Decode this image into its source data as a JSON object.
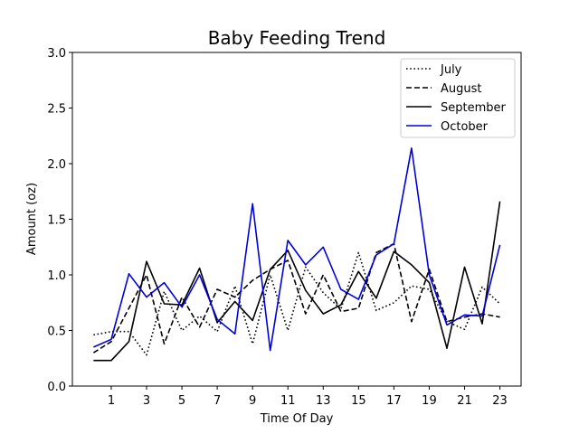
{
  "chart_data": {
    "type": "line",
    "title": "Baby Feeding Trend",
    "xlabel": "Time Of Day",
    "ylabel": "Amount (oz)",
    "xlim": [
      -1.2,
      24.2
    ],
    "ylim": [
      0,
      3.0
    ],
    "xticks": [
      1,
      3,
      5,
      7,
      9,
      11,
      13,
      15,
      17,
      19,
      21,
      23
    ],
    "yticks": [
      0.0,
      0.5,
      1.0,
      1.5,
      2.0,
      2.5,
      3.0
    ],
    "ytick_labels": [
      "0.0",
      "0.5",
      "1.0",
      "1.5",
      "2.0",
      "2.5",
      "3.0"
    ],
    "legend_position": "top-right",
    "x": [
      0,
      1,
      2,
      3,
      4,
      5,
      6,
      7,
      8,
      9,
      10,
      11,
      12,
      13,
      14,
      15,
      16,
      17,
      18,
      19,
      20,
      21,
      22,
      23
    ],
    "series": [
      {
        "name": "July",
        "style": "dotted",
        "color": "#000000",
        "values": [
          0.46,
          0.49,
          0.49,
          0.28,
          0.85,
          0.5,
          0.63,
          0.49,
          0.9,
          0.38,
          1.0,
          0.5,
          1.07,
          0.84,
          0.69,
          1.2,
          0.68,
          0.75,
          0.9,
          0.87,
          0.58,
          0.51,
          0.89,
          0.74
        ]
      },
      {
        "name": "August",
        "style": "dashed",
        "color": "#000000",
        "values": [
          0.3,
          0.4,
          0.7,
          1.0,
          0.38,
          0.8,
          0.53,
          0.87,
          0.8,
          0.95,
          1.05,
          1.13,
          0.65,
          1.0,
          0.67,
          0.7,
          1.2,
          1.28,
          0.58,
          1.05,
          0.58,
          0.62,
          0.65,
          0.62
        ]
      },
      {
        "name": "September",
        "style": "solid",
        "color": "#000000",
        "values": [
          0.23,
          0.23,
          0.4,
          1.12,
          0.74,
          0.73,
          1.06,
          0.57,
          0.76,
          0.59,
          1.05,
          1.22,
          0.86,
          0.65,
          0.73,
          1.03,
          0.79,
          1.21,
          1.09,
          0.93,
          0.34,
          1.07,
          0.56,
          1.66
        ]
      },
      {
        "name": "October",
        "style": "solid",
        "color": "#0000dd",
        "values": [
          0.35,
          0.42,
          1.01,
          0.8,
          0.93,
          0.71,
          1.0,
          0.6,
          0.47,
          1.64,
          0.32,
          1.31,
          1.09,
          1.25,
          0.87,
          0.78,
          1.18,
          1.28,
          2.14,
          1.0,
          0.55,
          0.64,
          0.63,
          1.27
        ]
      }
    ]
  }
}
